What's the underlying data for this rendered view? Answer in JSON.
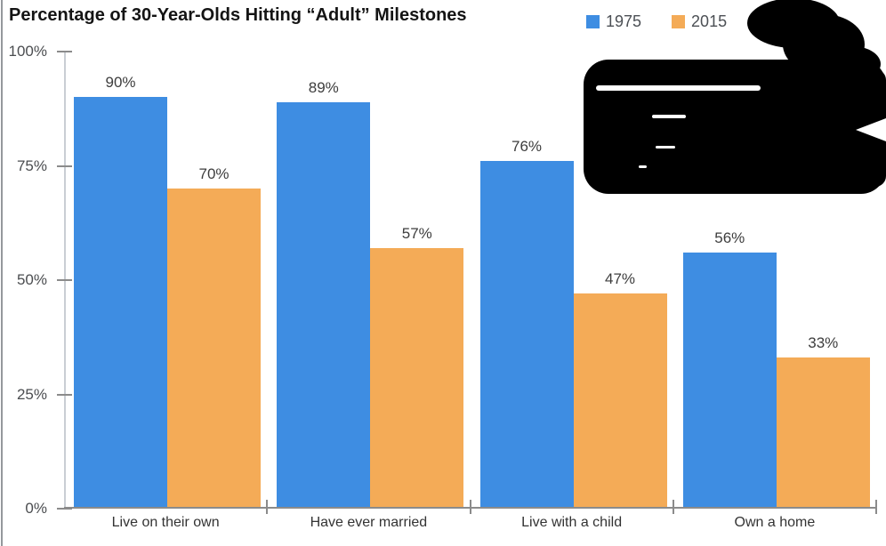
{
  "chart_data": {
    "type": "bar",
    "title": "Percentage of 30-Year-Olds Hitting “Adult” Milestones",
    "categories": [
      "Live on their own",
      "Have ever married",
      "Live with a child",
      "Own a home"
    ],
    "series": [
      {
        "name": "1975",
        "color": "#3e8de2",
        "values": [
          90,
          89,
          76,
          56
        ]
      },
      {
        "name": "2015",
        "color": "#f4ab57",
        "values": [
          70,
          57,
          47,
          33
        ]
      }
    ],
    "value_suffix": "%",
    "y_ticks": [
      "0%",
      "25%",
      "50%",
      "75%",
      "100%"
    ],
    "ylim": [
      0,
      100
    ],
    "grid": false,
    "legend_position": "top-right",
    "axis_color": "#8b8b8b"
  },
  "annotations": {
    "redaction_scribble": {
      "description": "Hand-drawn black marker scribble obscuring the upper-right blank area of the chart",
      "color": "#000000"
    }
  }
}
